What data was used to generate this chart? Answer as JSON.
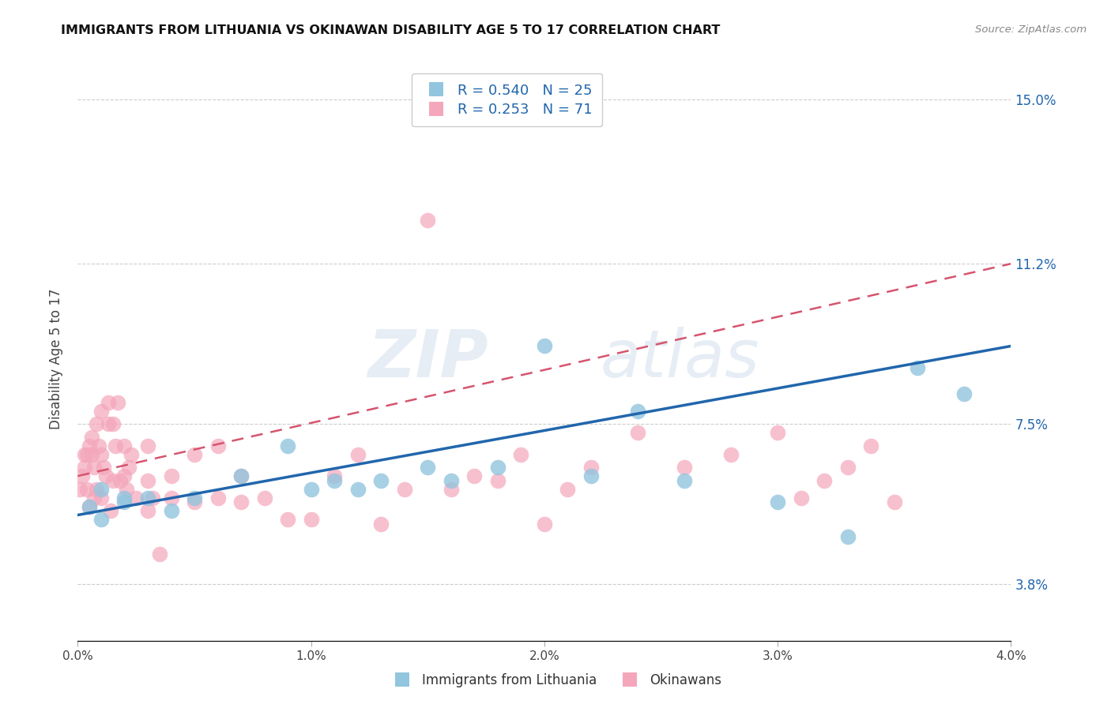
{
  "title": "IMMIGRANTS FROM LITHUANIA VS OKINAWAN DISABILITY AGE 5 TO 17 CORRELATION CHART",
  "source": "Source: ZipAtlas.com",
  "ylabel": "Disability Age 5 to 17",
  "x_min": 0.0,
  "x_max": 0.04,
  "y_min": 0.025,
  "y_max": 0.155,
  "right_yticks": [
    0.038,
    0.075,
    0.112,
    0.15
  ],
  "right_yticklabels": [
    "3.8%",
    "7.5%",
    "11.2%",
    "15.0%"
  ],
  "x_ticks": [
    0.0,
    0.01,
    0.02,
    0.03,
    0.04
  ],
  "x_ticklabels": [
    "0.0%",
    "1.0%",
    "2.0%",
    "3.0%",
    "4.0%"
  ],
  "legend_r1": "R = 0.540",
  "legend_n1": "N = 25",
  "legend_r2": "R = 0.253",
  "legend_n2": "N = 71",
  "color_blue": "#92c5de",
  "color_pink": "#f4a6bb",
  "color_blue_line": "#2166ac",
  "color_pink_line": "#d6546e",
  "color_blue_text": "#2166ac",
  "watermark_top": "ZIP",
  "watermark_bot": "atlas",
  "blue_scatter_x": [
    0.0005,
    0.001,
    0.001,
    0.002,
    0.002,
    0.003,
    0.004,
    0.005,
    0.007,
    0.009,
    0.01,
    0.011,
    0.012,
    0.013,
    0.015,
    0.016,
    0.018,
    0.02,
    0.022,
    0.024,
    0.026,
    0.03,
    0.033,
    0.036,
    0.038
  ],
  "blue_scatter_y": [
    0.056,
    0.06,
    0.053,
    0.058,
    0.057,
    0.058,
    0.055,
    0.058,
    0.063,
    0.07,
    0.06,
    0.062,
    0.06,
    0.062,
    0.065,
    0.062,
    0.065,
    0.093,
    0.063,
    0.078,
    0.062,
    0.057,
    0.049,
    0.088,
    0.082
  ],
  "pink_scatter_x": [
    0.0001,
    0.0002,
    0.0003,
    0.0003,
    0.0004,
    0.0004,
    0.0005,
    0.0005,
    0.0006,
    0.0006,
    0.0007,
    0.0007,
    0.0008,
    0.0008,
    0.0009,
    0.001,
    0.001,
    0.001,
    0.0011,
    0.0012,
    0.0013,
    0.0013,
    0.0014,
    0.0015,
    0.0015,
    0.0016,
    0.0017,
    0.0018,
    0.002,
    0.002,
    0.0021,
    0.0022,
    0.0023,
    0.0025,
    0.003,
    0.003,
    0.003,
    0.0032,
    0.0035,
    0.004,
    0.004,
    0.005,
    0.005,
    0.006,
    0.006,
    0.007,
    0.007,
    0.008,
    0.009,
    0.01,
    0.011,
    0.012,
    0.013,
    0.014,
    0.015,
    0.016,
    0.017,
    0.018,
    0.019,
    0.02,
    0.021,
    0.022,
    0.024,
    0.026,
    0.028,
    0.03,
    0.031,
    0.032,
    0.033,
    0.034,
    0.035
  ],
  "pink_scatter_y": [
    0.06,
    0.063,
    0.065,
    0.068,
    0.06,
    0.068,
    0.056,
    0.07,
    0.072,
    0.068,
    0.058,
    0.065,
    0.06,
    0.075,
    0.07,
    0.068,
    0.058,
    0.078,
    0.065,
    0.063,
    0.075,
    0.08,
    0.055,
    0.062,
    0.075,
    0.07,
    0.08,
    0.062,
    0.063,
    0.07,
    0.06,
    0.065,
    0.068,
    0.058,
    0.055,
    0.062,
    0.07,
    0.058,
    0.045,
    0.063,
    0.058,
    0.057,
    0.068,
    0.058,
    0.07,
    0.057,
    0.063,
    0.058,
    0.053,
    0.053,
    0.063,
    0.068,
    0.052,
    0.06,
    0.122,
    0.06,
    0.063,
    0.062,
    0.068,
    0.052,
    0.06,
    0.065,
    0.073,
    0.065,
    0.068,
    0.073,
    0.058,
    0.062,
    0.065,
    0.07,
    0.057
  ],
  "blue_line_x0": 0.0,
  "blue_line_y0": 0.054,
  "blue_line_x1": 0.04,
  "blue_line_y1": 0.093,
  "pink_line_x0": 0.0,
  "pink_line_y0": 0.063,
  "pink_line_x1": 0.04,
  "pink_line_y1": 0.112
}
